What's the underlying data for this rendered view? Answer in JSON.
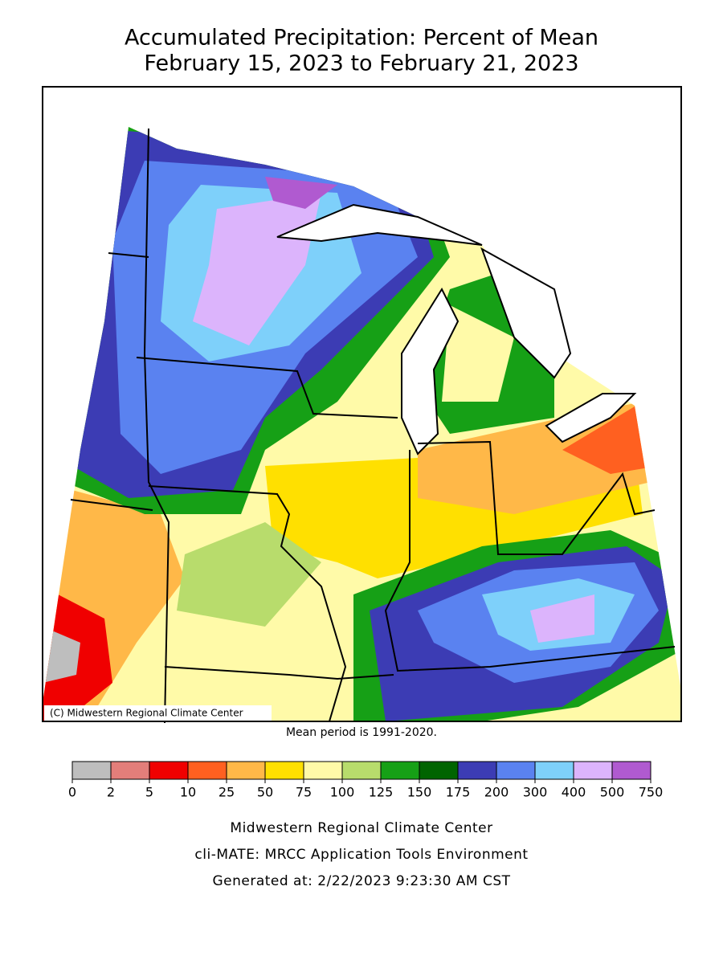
{
  "title": [
    "Accumulated Precipitation: Percent of Mean",
    "February 15, 2023 to February 21, 2023"
  ],
  "map": {
    "credit": "(C) Midwestern Regional Climate Center",
    "note": "Mean period is 1991-2020."
  },
  "legend": {
    "bins": [
      0,
      2,
      5,
      10,
      25,
      50,
      75,
      100,
      125,
      150,
      175,
      200,
      300,
      400,
      500,
      750
    ],
    "colors": [
      "#bebebe",
      "#e37e7a",
      "#f00000",
      "#ff6020",
      "#ffb848",
      "#ffe000",
      "#fffaa8",
      "#b8dc6c",
      "#16a016",
      "#006400",
      "#3c3cb4",
      "#5a82f0",
      "#7ed0fa",
      "#dcb4fc",
      "#b05ad0"
    ]
  },
  "footer": [
    "Midwestern Regional Climate Center",
    "cli-MATE: MRCC Application Tools Environment",
    "Generated at: 2/22/2023 9:23:30 AM CST"
  ]
}
